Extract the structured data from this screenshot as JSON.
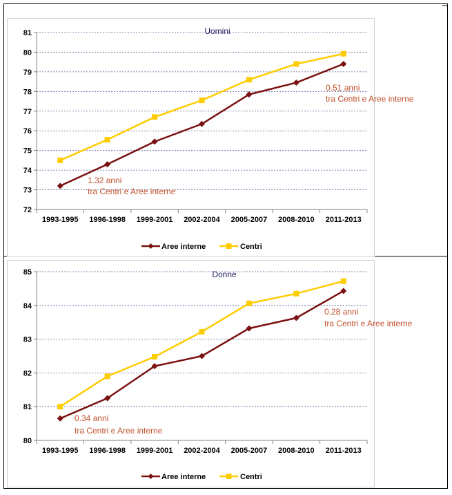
{
  "chart_data": [
    {
      "type": "line",
      "title": "Uomini",
      "categories": [
        "1993-1995",
        "1996-1998",
        "1999-2001",
        "2002-2004",
        "2005-2007",
        "2008-2010",
        "2011-2013"
      ],
      "ylim": [
        72,
        81
      ],
      "yticks": [
        72,
        73,
        74,
        75,
        76,
        77,
        78,
        79,
        80,
        81
      ],
      "grid": "horizontal-dashed",
      "legend": "bottom",
      "series": [
        {
          "name": "Aree interne",
          "color": "#7a1010",
          "marker": "diamond",
          "values": [
            73.2,
            74.3,
            75.45,
            76.35,
            77.85,
            78.45,
            79.4
          ]
        },
        {
          "name": "Centri",
          "color": "#ffcc00",
          "marker": "square",
          "values": [
            74.5,
            75.55,
            76.7,
            77.55,
            78.6,
            79.4,
            79.92
          ]
        }
      ],
      "annotations": [
        {
          "line1": "1.32 anni",
          "line2": "tra Centri e Aree interne",
          "color": "#c0502a"
        },
        {
          "line1": "0.51 anni",
          "line2": "tra Centri e Aree interne",
          "color": "#c0502a"
        }
      ]
    },
    {
      "type": "line",
      "title": "Donne",
      "categories": [
        "1993-1995",
        "1996-1998",
        "1999-2001",
        "2002-2004",
        "2005-2007",
        "2008-2010",
        "2011-2013"
      ],
      "ylim": [
        80,
        85
      ],
      "yticks": [
        80,
        81,
        82,
        83,
        84,
        85
      ],
      "grid": "horizontal-dashed",
      "legend": "bottom",
      "series": [
        {
          "name": "Aree interne",
          "color": "#7a1010",
          "marker": "diamond",
          "values": [
            80.65,
            81.25,
            82.2,
            82.5,
            83.32,
            83.63,
            84.43
          ]
        },
        {
          "name": "Centri",
          "color": "#ffcc00",
          "marker": "square",
          "values": [
            81.0,
            81.9,
            82.48,
            83.22,
            84.06,
            84.35,
            84.72
          ]
        }
      ],
      "annotations": [
        {
          "line1": "0.34 anni",
          "line2": "tra Centri e Aree interne",
          "color": "#c0502a"
        },
        {
          "line1": "0.28 anni",
          "line2": "tra Centri e Aree interne",
          "color": "#c0502a"
        }
      ]
    }
  ]
}
